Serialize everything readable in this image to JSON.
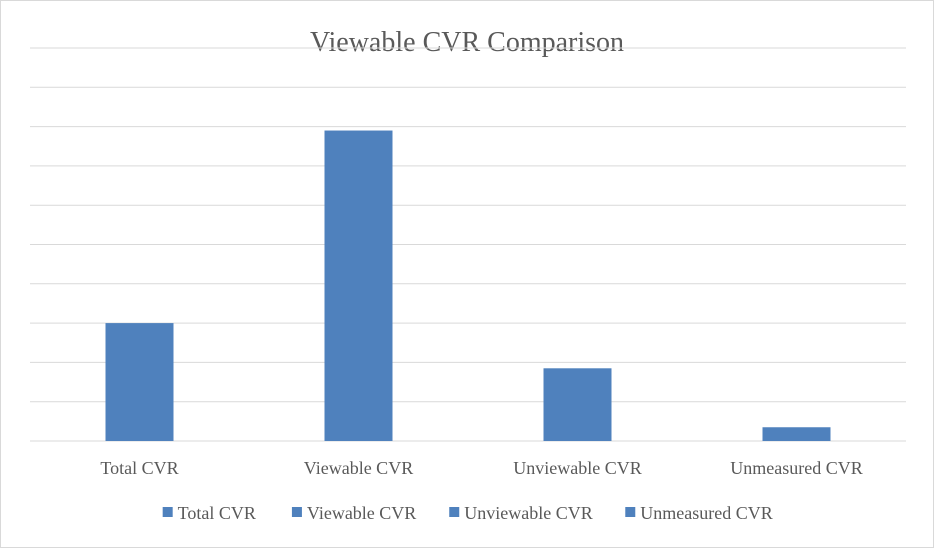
{
  "chart_data": {
    "type": "bar",
    "title": "Viewable CVR Comparison",
    "categories": [
      "Total CVR",
      "Viewable CVR",
      "Unviewable CVR",
      "Unmeasured CVR"
    ],
    "series": [
      {
        "values": [
          3.0,
          7.9,
          1.85,
          0.35
        ]
      }
    ],
    "ylim": [
      0,
      10
    ],
    "y_tick_labels_shown": false,
    "grid": true,
    "legend": {
      "placement": "bottom",
      "entries": [
        "Total CVR",
        "Viewable CVR",
        "Unviewable CVR",
        "Unmeasured CVR"
      ]
    },
    "colors": {
      "bar": "#4f81bd",
      "grid": "#d9d9d9",
      "axis": "#d9d9d9",
      "text": "#595959"
    }
  }
}
